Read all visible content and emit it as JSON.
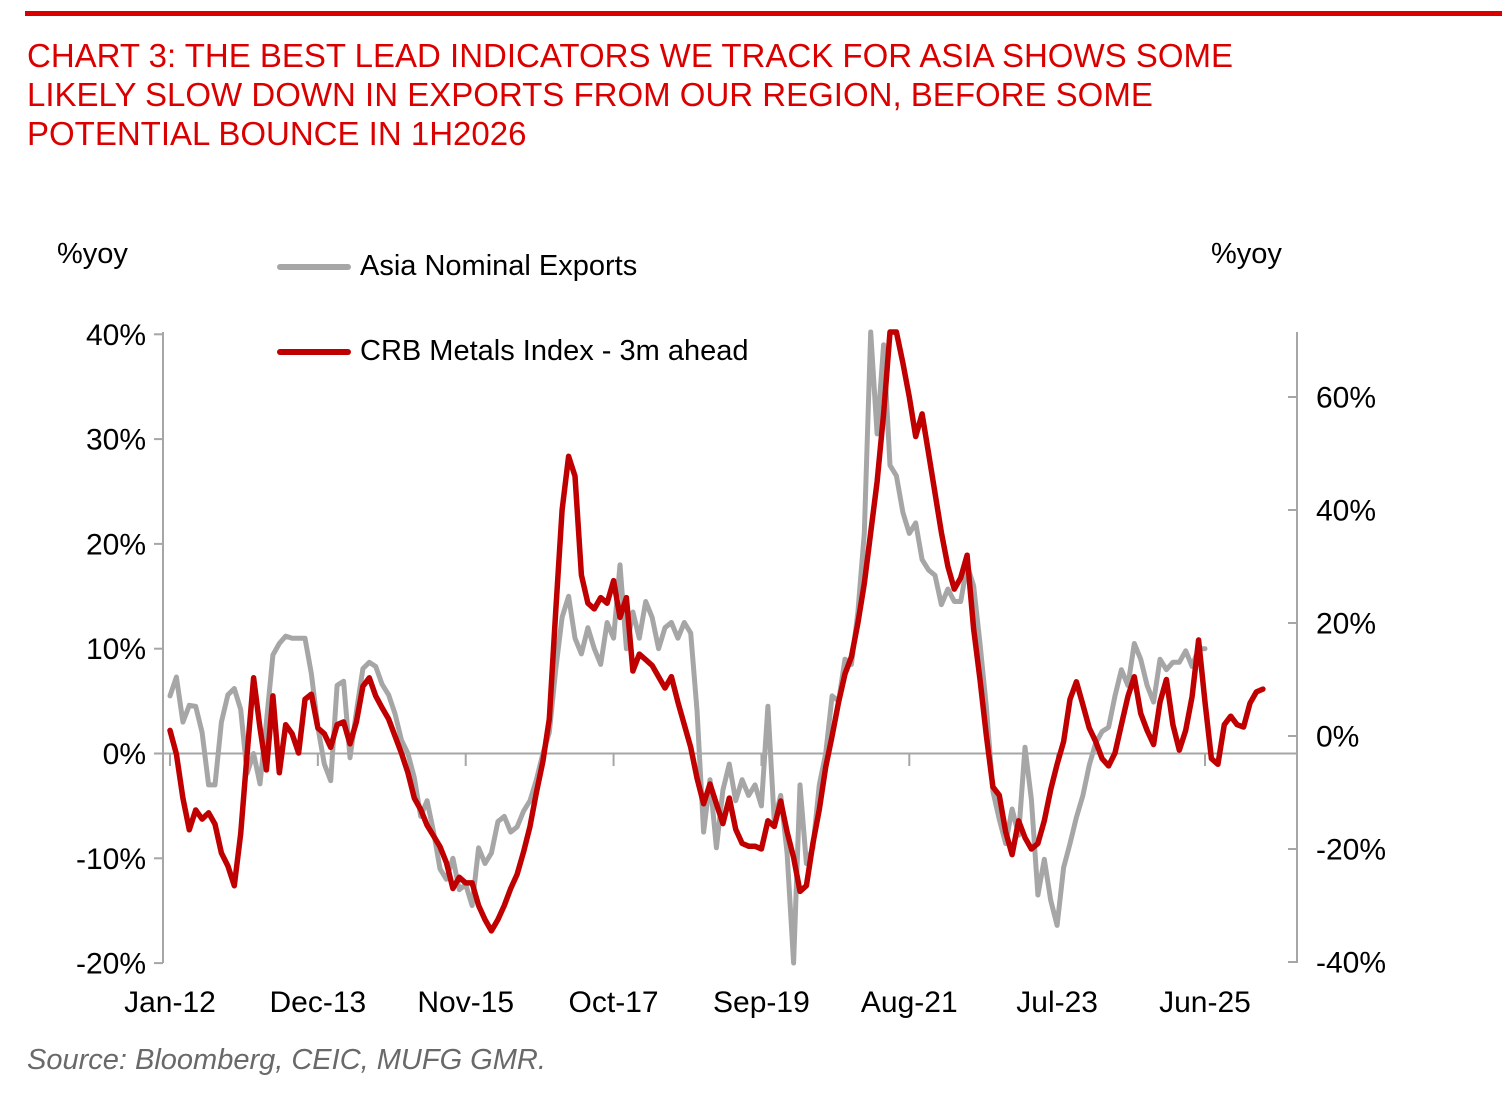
{
  "header": {
    "title_lines": [
      "CHART 3: THE BEST LEAD INDICATORS WE TRACK FOR ASIA SHOWS SOME",
      "LIKELY SLOW DOWN IN EXPORTS FROM OUR REGION, BEFORE SOME",
      "POTENTIAL BOUNCE IN 1H2026"
    ],
    "accent_color": "#db0000"
  },
  "axis_units": {
    "left": "%yoy",
    "right": "%yoy"
  },
  "legend": {
    "items": [
      {
        "label": "Asia Nominal Exports",
        "color": "#a6a6a6"
      },
      {
        "label": "CRB Metals Index - 3m ahead",
        "color": "#c00000"
      }
    ]
  },
  "source_note": "Source: Bloomberg, CEIC, MUFG GMR.",
  "chart_data": {
    "type": "line",
    "title": "",
    "x_frequency": "monthly",
    "x_first_month": "Jan-2012",
    "x_tick_labels": [
      "Jan-12",
      "Dec-13",
      "Nov-15",
      "Oct-17",
      "Sep-19",
      "Aug-21",
      "Jul-23",
      "Jun-25"
    ],
    "x_tick_month_indices": [
      0,
      23,
      46,
      69,
      92,
      115,
      138,
      161
    ],
    "grid": "zero-line-only",
    "legend_position": "top-left",
    "left_axis": {
      "unit": "%yoy",
      "min": -20,
      "max": 40,
      "tick_values": [
        40,
        30,
        20,
        10,
        0,
        -10,
        -20
      ],
      "tick_labels": [
        "40%",
        "30%",
        "20%",
        "10%",
        "0%",
        "-10%",
        "-20%"
      ]
    },
    "right_axis": {
      "unit": "%yoy",
      "min": -40,
      "max": 72,
      "tick_values": [
        60,
        40,
        20,
        0,
        -20,
        -40
      ],
      "tick_labels": [
        "60%",
        "40%",
        "20%",
        "0%",
        "-20%",
        "-40%"
      ]
    },
    "series": [
      {
        "name": "Asia Nominal Exports",
        "axis": "left",
        "color": "#a6a6a6",
        "stroke_width": 5,
        "start_month_index": 0,
        "values": [
          5.5,
          7.3,
          3,
          4.6,
          4.5,
          2,
          -3,
          -3,
          3,
          5.6,
          6.2,
          4.2,
          -1.9,
          0,
          -2.9,
          3,
          9.4,
          10.5,
          11.2,
          11,
          11,
          11,
          7.6,
          2.5,
          -1,
          -2.6,
          6.5,
          6.9,
          -0.4,
          4,
          8.1,
          8.7,
          8.3,
          6.6,
          5.6,
          3.8,
          1.3,
          0,
          -2.3,
          -6,
          -4.5,
          -7.5,
          -11,
          -12,
          -10,
          -13,
          -12.5,
          -14.5,
          -9,
          -10.5,
          -9.5,
          -6.5,
          -6,
          -7.5,
          -7,
          -5.5,
          -4.5,
          -2.5,
          0,
          2,
          8,
          13,
          15,
          11,
          9.5,
          12,
          10,
          8.5,
          12.5,
          11,
          18,
          10,
          13.5,
          11,
          14.5,
          13,
          10,
          12,
          12.5,
          11,
          12.5,
          11.5,
          4,
          -7.5,
          -2.5,
          -9,
          -3.5,
          -1,
          -4.5,
          -2.5,
          -4,
          -3,
          -5,
          4.5,
          -6.5,
          -4,
          -9.5,
          -20.5,
          -3,
          -10.5,
          -9,
          -3,
          0,
          5.5,
          5,
          9,
          8.5,
          13.5,
          21,
          41,
          30.5,
          39,
          27.5,
          26.5,
          23,
          21,
          22,
          18.5,
          17.5,
          17,
          14.2,
          15.7,
          14.5,
          14.5,
          18,
          16,
          10.5,
          4.4,
          -3.6,
          -6.3,
          -8.6,
          -5.3,
          -7.8,
          0.6,
          -4.4,
          -13.5,
          -10.1,
          -14,
          -16.4,
          -10.9,
          -8.6,
          -6.1,
          -4,
          -1.1,
          1,
          2.1,
          2.5,
          5.5,
          8,
          6.5,
          10.5,
          9,
          6.5,
          4.9,
          9,
          8,
          8.7,
          8.7,
          9.8,
          8.3,
          10,
          10
        ]
      },
      {
        "name": "CRB Metals Index - 3m ahead",
        "axis": "right",
        "color": "#c00000",
        "stroke_width": 5.5,
        "start_month_index": 0,
        "values": [
          1,
          -3.2,
          -11,
          -16.6,
          -13.1,
          -14.7,
          -13.6,
          -15.6,
          -20.7,
          -23,
          -26.5,
          -17.3,
          -3.2,
          10.3,
          1.4,
          -6,
          7.1,
          -6.5,
          2,
          0.4,
          -3,
          6.5,
          7.4,
          1.4,
          0.4,
          -2,
          2,
          2.5,
          -1.4,
          2.5,
          8.8,
          10.3,
          7.1,
          5,
          3,
          0,
          -3,
          -6.5,
          -11,
          -13,
          -15.8,
          -17.7,
          -19.6,
          -22.4,
          -27,
          -25,
          -26,
          -26,
          -30,
          -32.5,
          -34.5,
          -32.5,
          -30,
          -27,
          -24.5,
          -20.5,
          -16,
          -10,
          -4.5,
          3,
          22,
          40,
          49.5,
          46,
          28.5,
          23.5,
          22.5,
          24.5,
          23.5,
          27.5,
          21,
          24.5,
          11.5,
          14.5,
          13.5,
          12.5,
          10.5,
          8.5,
          10.5,
          6,
          2,
          -2,
          -7.5,
          -12,
          -8.5,
          -12,
          -15.5,
          -11,
          -16.5,
          -19,
          -19.5,
          -19.5,
          -20,
          -15,
          -16,
          -11.5,
          -17,
          -21.5,
          -27.5,
          -26.5,
          -19,
          -13,
          -5.5,
          0,
          6,
          11,
          14,
          20,
          27,
          36,
          45,
          57,
          74,
          74,
          66,
          60,
          53,
          57,
          50,
          43,
          36,
          30,
          26,
          28,
          32,
          19,
          10,
          0,
          -9,
          -10.5,
          -17,
          -21,
          -15,
          -18,
          -20,
          -19,
          -15,
          -9.5,
          -5,
          -1,
          6.5,
          9.6,
          5.5,
          1.4,
          -1,
          -4,
          -5.3,
          -3,
          2,
          7,
          10.5,
          4,
          1,
          -1.5,
          6,
          10,
          2,
          -2.5,
          1,
          7,
          17,
          6,
          -4,
          -5,
          2,
          3.5,
          2,
          1.6,
          5.8,
          7.8,
          8.3
        ]
      }
    ]
  }
}
